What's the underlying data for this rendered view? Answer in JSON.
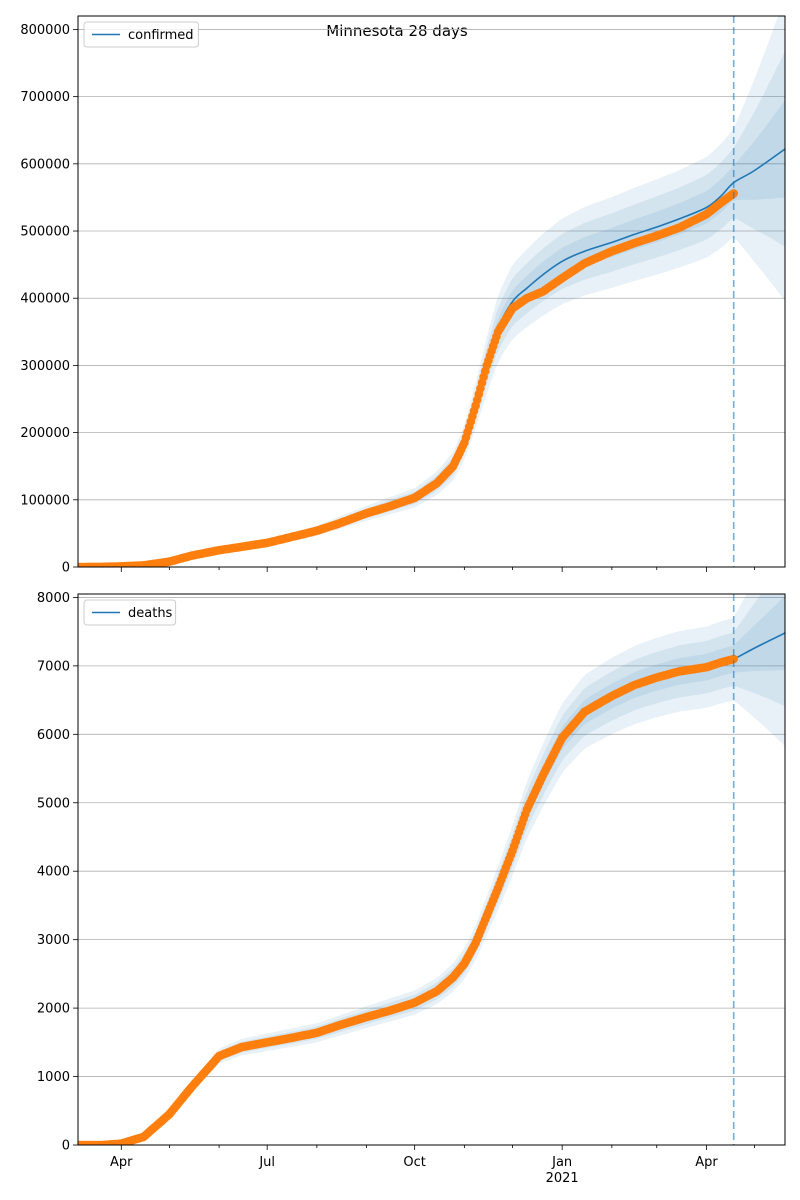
{
  "figure": {
    "title": "Minnesota 28 days"
  },
  "colors": {
    "model": "#1f77b4",
    "observed": "#ff7f0e",
    "band": "#1f77b4",
    "grid": "#b0b0b0",
    "cutoff": "#1f77b4"
  },
  "chart_data": [
    {
      "type": "line",
      "name": "confirmed-panel",
      "legend": [
        "confirmed"
      ],
      "legend_position": "top-left",
      "grid": "horizontal",
      "ylim": [
        0,
        820000
      ],
      "yticks": [
        0,
        100000,
        200000,
        300000,
        400000,
        500000,
        600000,
        700000,
        800000
      ],
      "xlim": [
        "2020-03-05",
        "2021-05-20"
      ],
      "xticks": [
        {
          "date": "2020-04-01",
          "label": "Apr",
          "sub": ""
        },
        {
          "date": "2020-07-01",
          "label": "Jul",
          "sub": ""
        },
        {
          "date": "2020-10-01",
          "label": "Oct",
          "sub": ""
        },
        {
          "date": "2021-01-01",
          "label": "Jan",
          "sub": "2021"
        },
        {
          "date": "2021-04-01",
          "label": "Apr",
          "sub": ""
        }
      ],
      "cutoff_date": "2021-04-18",
      "observed": {
        "x": [
          "2020-03-05",
          "2020-03-20",
          "2020-04-01",
          "2020-04-15",
          "2020-05-01",
          "2020-05-15",
          "2020-06-01",
          "2020-06-15",
          "2020-07-01",
          "2020-07-15",
          "2020-08-01",
          "2020-08-15",
          "2020-09-01",
          "2020-09-15",
          "2020-10-01",
          "2020-10-15",
          "2020-10-25",
          "2020-11-01",
          "2020-11-08",
          "2020-11-15",
          "2020-11-22",
          "2020-12-01",
          "2020-12-10",
          "2020-12-20",
          "2021-01-01",
          "2021-01-15",
          "2021-02-01",
          "2021-02-15",
          "2021-03-01",
          "2021-03-15",
          "2021-04-01",
          "2021-04-10",
          "2021-04-18"
        ],
        "y": [
          0,
          200,
          1000,
          2500,
          8000,
          17000,
          25000,
          30000,
          36000,
          44000,
          54000,
          65000,
          80000,
          90000,
          103000,
          125000,
          150000,
          185000,
          240000,
          300000,
          350000,
          385000,
          400000,
          410000,
          430000,
          452000,
          470000,
          482000,
          493000,
          505000,
          525000,
          542000,
          556000
        ]
      },
      "model": {
        "x": [
          "2020-03-05",
          "2020-04-01",
          "2020-05-01",
          "2020-06-01",
          "2020-07-01",
          "2020-08-01",
          "2020-09-01",
          "2020-10-01",
          "2020-10-15",
          "2020-10-25",
          "2020-11-01",
          "2020-11-08",
          "2020-11-15",
          "2020-11-22",
          "2020-12-01",
          "2020-12-10",
          "2020-12-20",
          "2021-01-01",
          "2021-01-15",
          "2021-02-01",
          "2021-02-15",
          "2021-03-01",
          "2021-03-15",
          "2021-04-01",
          "2021-04-10",
          "2021-04-18",
          "2021-05-01",
          "2021-05-20"
        ],
        "y": [
          0,
          1000,
          8000,
          25000,
          36000,
          54000,
          80000,
          103000,
          125000,
          150000,
          185000,
          240000,
          300000,
          355000,
          395000,
          415000,
          435000,
          455000,
          470000,
          483000,
          495000,
          506000,
          518000,
          535000,
          552000,
          572000,
          590000,
          622000
        ]
      },
      "bands": [
        {
          "opacity": 0.1,
          "spread": 0.14
        },
        {
          "opacity": 0.1,
          "spread": 0.09
        },
        {
          "opacity": 0.1,
          "spread": 0.045
        }
      ]
    },
    {
      "type": "line",
      "name": "deaths-panel",
      "legend": [
        "deaths"
      ],
      "legend_position": "top-left",
      "grid": "horizontal",
      "ylim": [
        0,
        8050
      ],
      "yticks": [
        0,
        1000,
        2000,
        3000,
        4000,
        5000,
        6000,
        7000,
        8000
      ],
      "xlim": [
        "2020-03-05",
        "2021-05-20"
      ],
      "xticks": [
        {
          "date": "2020-04-01",
          "label": "Apr",
          "sub": ""
        },
        {
          "date": "2020-07-01",
          "label": "Jul",
          "sub": ""
        },
        {
          "date": "2020-10-01",
          "label": "Oct",
          "sub": ""
        },
        {
          "date": "2021-01-01",
          "label": "Jan",
          "sub": "2021"
        },
        {
          "date": "2021-04-01",
          "label": "Apr",
          "sub": ""
        }
      ],
      "cutoff_date": "2021-04-18",
      "observed": {
        "x": [
          "2020-03-05",
          "2020-03-20",
          "2020-04-01",
          "2020-04-15",
          "2020-05-01",
          "2020-05-15",
          "2020-06-01",
          "2020-06-15",
          "2020-07-01",
          "2020-07-15",
          "2020-08-01",
          "2020-08-15",
          "2020-09-01",
          "2020-09-15",
          "2020-10-01",
          "2020-10-15",
          "2020-10-25",
          "2020-11-01",
          "2020-11-08",
          "2020-11-15",
          "2020-11-22",
          "2020-12-01",
          "2020-12-10",
          "2020-12-20",
          "2021-01-01",
          "2021-01-15",
          "2021-02-01",
          "2021-02-15",
          "2021-03-01",
          "2021-03-15",
          "2021-04-01",
          "2021-04-10",
          "2021-04-18"
        ],
        "y": [
          0,
          0,
          20,
          120,
          450,
          850,
          1300,
          1430,
          1500,
          1560,
          1640,
          1750,
          1870,
          1960,
          2080,
          2250,
          2450,
          2650,
          2950,
          3350,
          3750,
          4300,
          4900,
          5400,
          5950,
          6330,
          6560,
          6720,
          6830,
          6920,
          6980,
          7050,
          7100
        ]
      },
      "model": {
        "x": [
          "2020-03-05",
          "2020-03-20",
          "2020-04-01",
          "2020-04-15",
          "2020-05-01",
          "2020-05-15",
          "2020-06-01",
          "2020-06-15",
          "2020-07-01",
          "2020-08-01",
          "2020-09-01",
          "2020-10-01",
          "2020-10-15",
          "2020-10-25",
          "2020-11-01",
          "2020-11-08",
          "2020-11-15",
          "2020-11-22",
          "2020-12-01",
          "2020-12-10",
          "2020-12-20",
          "2021-01-01",
          "2021-01-15",
          "2021-02-01",
          "2021-02-15",
          "2021-03-01",
          "2021-03-15",
          "2021-04-01",
          "2021-04-10",
          "2021-04-18",
          "2021-05-01",
          "2021-05-20"
        ],
        "y": [
          0,
          0,
          20,
          120,
          450,
          850,
          1300,
          1430,
          1500,
          1640,
          1870,
          2080,
          2250,
          2450,
          2650,
          2950,
          3350,
          3750,
          4300,
          4900,
          5400,
          5950,
          6330,
          6560,
          6720,
          6830,
          6920,
          6980,
          7050,
          7100,
          7260,
          7480
        ]
      },
      "bands": [
        {
          "opacity": 0.1,
          "spread": 0.085
        },
        {
          "opacity": 0.1,
          "spread": 0.055
        },
        {
          "opacity": 0.1,
          "spread": 0.028
        }
      ]
    }
  ]
}
